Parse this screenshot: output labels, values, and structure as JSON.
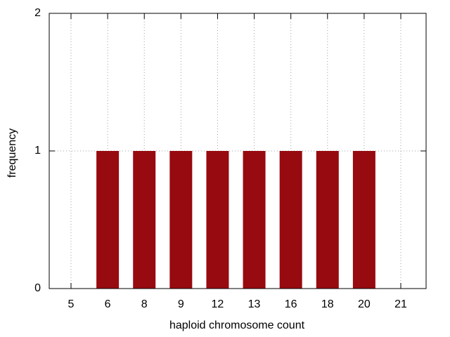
{
  "chart_data": {
    "type": "bar",
    "x_label": "haploid chromosome count",
    "y_label": "frequency",
    "categories": [
      "5",
      "6",
      "8",
      "9",
      "12",
      "13",
      "16",
      "18",
      "20",
      "21"
    ],
    "values": [
      0,
      1,
      1,
      1,
      1,
      1,
      1,
      1,
      1,
      0
    ],
    "color": "#970a0f",
    "ylim": [
      0,
      2
    ],
    "yticks": [
      0,
      1,
      2
    ],
    "grid": true
  }
}
